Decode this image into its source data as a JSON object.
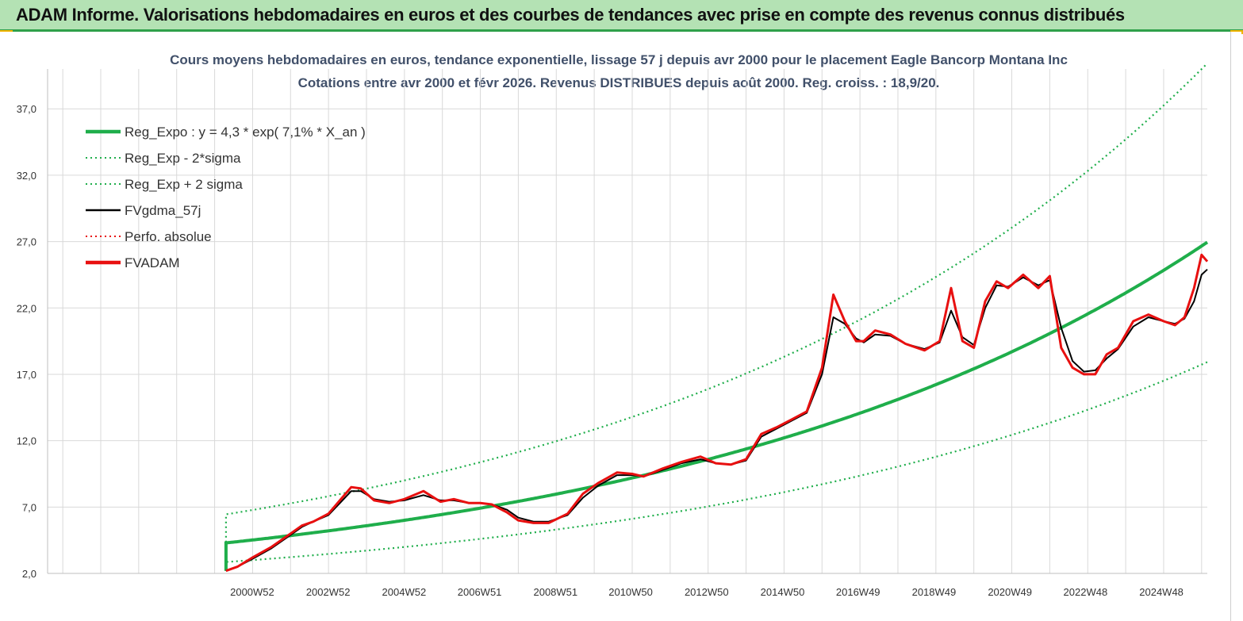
{
  "header": {
    "title": "ADAM Informe. Valorisations hebdomadaires en euros et des courbes de tendances avec prise en compte des revenus connus distribués"
  },
  "colors": {
    "banner_bg": "#b4e2b4",
    "banner_border": "#2fa04a",
    "accent_yellow": "#f2b400",
    "reg_expo": "#1fae4b",
    "reg_sigma": "#1fae4b",
    "fvgdma": "#000000",
    "perfo": "#e81010",
    "fvadam": "#e81010",
    "grid": "#d9d9d9"
  },
  "chart_data": {
    "type": "line",
    "title": "Cours moyens hebdomadaires en euros, tendance exponentielle, lissage 57 j depuis avr 2000 pour le placement Eagle Bancorp Montana Inc",
    "subtitle": "Cotations entre avr 2000 et févr 2026. Revenus DISTRIBUES depuis août 2000. Reg. croiss. : 18,9/20.",
    "xlabel": "",
    "ylabel": "",
    "ylim": [
      2.0,
      40.0
    ],
    "xlim": [
      1995.6,
      2026.15
    ],
    "yticks": [
      "2,0",
      "7,0",
      "12,0",
      "17,0",
      "22,0",
      "27,0",
      "32,0",
      "37,0"
    ],
    "ytick_values": [
      2,
      7,
      12,
      17,
      22,
      27,
      32,
      37
    ],
    "xticks": [
      "2000W52",
      "2002W52",
      "2004W52",
      "2006W51",
      "2008W51",
      "2010W50",
      "2012W50",
      "2014W50",
      "2016W49",
      "2018W49",
      "2020W49",
      "2022W48",
      "2024W48"
    ],
    "xtick_values": [
      2000.99,
      2002.99,
      2004.99,
      2006.98,
      2008.98,
      2010.96,
      2012.96,
      2014.96,
      2016.95,
      2018.95,
      2020.95,
      2022.94,
      2024.94
    ],
    "grid": true,
    "legend_position": "top-left",
    "legend": [
      {
        "label": "Reg_Expo : y = 4,3 * exp( 7,1% *  X_an )",
        "style": "solid-thick",
        "color": "#1fae4b"
      },
      {
        "label": "Reg_Exp - 2*sigma",
        "style": "dotted",
        "color": "#1fae4b"
      },
      {
        "label": "Reg_Exp + 2 sigma",
        "style": "dotted",
        "color": "#1fae4b"
      },
      {
        "label": "FVgdma_57j",
        "style": "solid",
        "color": "#000000"
      },
      {
        "label": "Perfo. absolue",
        "style": "dotted",
        "color": "#e81010"
      },
      {
        "label": "FVADAM",
        "style": "solid-thick",
        "color": "#e81010"
      }
    ],
    "trend": {
      "a": 4.3,
      "b": 0.071,
      "start": 2000.3,
      "end": 2026.15,
      "sigma_low_factor": 0.665,
      "sigma_high_factor": 1.5
    },
    "series_points": {
      "x": [
        2000.3,
        2000.6,
        2001.0,
        2001.5,
        2002.0,
        2002.3,
        2002.6,
        2003.0,
        2003.3,
        2003.6,
        2003.85,
        2004.2,
        2004.6,
        2005.0,
        2005.5,
        2005.95,
        2006.3,
        2006.7,
        2007.0,
        2007.3,
        2007.7,
        2008.0,
        2008.4,
        2008.8,
        2009.3,
        2009.7,
        2010.1,
        2010.6,
        2011.0,
        2011.3,
        2011.8,
        2012.3,
        2012.8,
        2013.2,
        2013.6,
        2014.0,
        2014.4,
        2014.8,
        2015.2,
        2015.6,
        2016.0,
        2016.3,
        2016.6,
        2016.9,
        2017.1,
        2017.4,
        2017.8,
        2018.2,
        2018.7,
        2019.1,
        2019.4,
        2019.7,
        2020.0,
        2020.3,
        2020.6,
        2020.9,
        2021.3,
        2021.7,
        2022.0,
        2022.3,
        2022.6,
        2022.9,
        2023.2,
        2023.5,
        2023.8,
        2024.2,
        2024.6,
        2025.0,
        2025.3,
        2025.55,
        2025.8,
        2026.0,
        2026.15
      ],
      "fvadam": [
        2.2,
        2.5,
        3.2,
        4.0,
        5.0,
        5.6,
        5.9,
        6.5,
        7.5,
        8.5,
        8.4,
        7.5,
        7.3,
        7.6,
        8.2,
        7.4,
        7.6,
        7.3,
        7.3,
        7.2,
        6.6,
        6.0,
        5.8,
        5.8,
        6.5,
        8.0,
        8.8,
        9.6,
        9.5,
        9.3,
        9.9,
        10.4,
        10.8,
        10.3,
        10.2,
        10.6,
        12.5,
        13.0,
        13.6,
        14.2,
        17.5,
        23.0,
        21.0,
        19.5,
        19.5,
        20.3,
        20.0,
        19.3,
        18.8,
        19.5,
        23.5,
        19.5,
        19.0,
        22.5,
        24.0,
        23.5,
        24.5,
        23.5,
        24.4,
        19.0,
        17.5,
        17.0,
        17.0,
        18.5,
        19.0,
        21.0,
        21.5,
        21.0,
        20.7,
        21.3,
        23.5,
        26.0,
        25.5
      ],
      "fvgdma": [
        2.2,
        2.5,
        3.1,
        3.9,
        4.9,
        5.5,
        5.9,
        6.4,
        7.3,
        8.2,
        8.2,
        7.6,
        7.4,
        7.5,
        7.9,
        7.5,
        7.5,
        7.3,
        7.3,
        7.2,
        6.8,
        6.2,
        5.9,
        5.9,
        6.4,
        7.7,
        8.6,
        9.4,
        9.4,
        9.3,
        9.8,
        10.3,
        10.6,
        10.3,
        10.2,
        10.5,
        12.3,
        12.9,
        13.5,
        14.1,
        17.0,
        21.3,
        20.8,
        19.7,
        19.4,
        20.0,
        19.9,
        19.3,
        18.9,
        19.4,
        21.8,
        19.8,
        19.2,
        22.0,
        23.7,
        23.6,
        24.3,
        23.7,
        24.1,
        20.5,
        18.0,
        17.2,
        17.3,
        18.2,
        18.9,
        20.6,
        21.3,
        21.0,
        20.8,
        21.2,
        22.5,
        24.5,
        24.9
      ]
    }
  }
}
